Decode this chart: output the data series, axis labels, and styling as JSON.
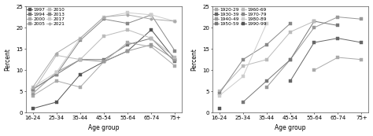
{
  "age_groups": [
    "16-24",
    "25-34",
    "35-44",
    "45-54",
    "55-64",
    "65-74",
    "75+"
  ],
  "left_panel": {
    "xlabel": "Age group",
    "ylabel": "Percent",
    "ylim": [
      0,
      25
    ],
    "yticks": [
      0,
      5,
      10,
      15,
      20,
      25
    ],
    "series": [
      {
        "label": "1997",
        "marker": "s",
        "color": "#555555",
        "lw": 0.7,
        "data": [
          1.0,
          2.5,
          9.0,
          12.0,
          14.5,
          19.5,
          12.5
        ]
      },
      {
        "label": "1994",
        "marker": "s",
        "color": "#777777",
        "lw": 0.7,
        "data": [
          5.5,
          9.0,
          12.5,
          12.5,
          16.0,
          17.5,
          12.0
        ]
      },
      {
        "label": "2000",
        "marker": "s",
        "color": "#aaaaaa",
        "lw": 0.7,
        "data": [
          4.0,
          7.5,
          6.0,
          12.0,
          16.5,
          15.5,
          11.0
        ]
      },
      {
        "label": "2005",
        "marker": "s",
        "color": "#999999",
        "lw": 0.7,
        "data": [
          4.5,
          9.5,
          12.5,
          12.0,
          14.5,
          16.0,
          12.5
        ]
      },
      {
        "label": "2010",
        "marker": "s",
        "color": "#bbbbbb",
        "lw": 0.7,
        "data": [
          5.0,
          13.5,
          12.5,
          18.0,
          19.5,
          17.5,
          13.0
        ]
      },
      {
        "label": "2013",
        "marker": "s",
        "color": "#888888",
        "lw": 0.7,
        "data": [
          5.5,
          9.0,
          17.0,
          22.0,
          21.0,
          23.0,
          14.5
        ]
      },
      {
        "label": "2017",
        "marker": "s",
        "color": "#cccccc",
        "lw": 0.7,
        "data": [
          6.0,
          9.5,
          17.5,
          22.5,
          23.5,
          23.0,
          21.5
        ]
      },
      {
        "label": "2021",
        "marker": "o",
        "color": "#aaaaaa",
        "lw": 0.7,
        "data": [
          6.0,
          14.0,
          17.5,
          22.5,
          23.0,
          22.0,
          21.5
        ]
      }
    ]
  },
  "right_panel": {
    "xlabel": "Age group",
    "ylabel": "Percent",
    "ylim": [
      0,
      25
    ],
    "yticks": [
      0,
      5,
      10,
      15,
      20,
      25
    ],
    "series": [
      {
        "label": "1920-29",
        "marker": "s",
        "color": "#aaaaaa",
        "lw": 0.7,
        "data": [
          null,
          null,
          null,
          null,
          10.0,
          13.0,
          12.5
        ]
      },
      {
        "label": "1930-39",
        "marker": "s",
        "color": "#666666",
        "lw": 0.7,
        "data": [
          null,
          null,
          null,
          7.5,
          16.5,
          17.5,
          16.5
        ]
      },
      {
        "label": "1940-49",
        "marker": "s",
        "color": "#999999",
        "lw": 0.7,
        "data": [
          null,
          null,
          6.0,
          12.5,
          20.0,
          22.5,
          22.0
        ]
      },
      {
        "label": "1950-59",
        "marker": "s",
        "color": "#777777",
        "lw": 0.7,
        "data": [
          null,
          2.5,
          7.5,
          12.5,
          21.5,
          20.5,
          null
        ]
      },
      {
        "label": "1960-69",
        "marker": "s",
        "color": "#bbbbbb",
        "lw": 0.7,
        "data": [
          5.0,
          11.0,
          12.5,
          19.0,
          21.5,
          null,
          null
        ]
      },
      {
        "label": "1970-79",
        "marker": "s",
        "color": "#888888",
        "lw": 0.7,
        "data": [
          4.5,
          12.5,
          16.0,
          21.0,
          null,
          null,
          null
        ]
      },
      {
        "label": "1980-89",
        "marker": "s",
        "color": "#cccccc",
        "lw": 0.7,
        "data": [
          4.0,
          8.5,
          21.0,
          null,
          null,
          null,
          null
        ]
      },
      {
        "label": "1990-99",
        "marker": "s",
        "color": "#555555",
        "lw": 0.7,
        "data": [
          1.0,
          null,
          null,
          null,
          null,
          null,
          null
        ]
      }
    ]
  },
  "line_color": "#999999",
  "marker_size": 2.5,
  "font_size": 5.0,
  "legend_font_size": 4.2,
  "axis_label_size": 5.5
}
